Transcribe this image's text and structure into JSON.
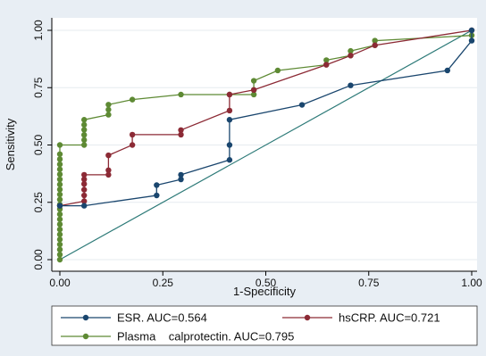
{
  "chart_data": {
    "type": "line",
    "xlabel": "1-Specificity",
    "ylabel": "Sensitivity",
    "xlim": [
      0,
      1
    ],
    "ylim": [
      0,
      1
    ],
    "x_ticks": [
      "0.00",
      "0.25",
      "0.50",
      "0.75",
      "1.00"
    ],
    "y_ticks": [
      "0.00",
      "0.25",
      "0.50",
      "0.75",
      "1.00"
    ],
    "grid": "horizontal",
    "legend_position": "bottom",
    "reference_line": {
      "x": [
        0,
        1
      ],
      "y": [
        0,
        1
      ],
      "color": "#2d7a78"
    },
    "series": [
      {
        "name": "ESR. AUC=0.564",
        "color": "#1a466e",
        "x": [
          0,
          0.059,
          0.235,
          0.235,
          0.294,
          0.294,
          0.412,
          0.412,
          0.412,
          0.588,
          0.706,
          0.941,
          1.0,
          1.0
        ],
        "y": [
          0.235,
          0.235,
          0.28,
          0.325,
          0.35,
          0.37,
          0.435,
          0.5,
          0.61,
          0.675,
          0.76,
          0.825,
          0.955,
          1.0
        ]
      },
      {
        "name": "hsCRP. AUC=0.721",
        "color": "#8c2a35",
        "x": [
          0,
          0.059,
          0.059,
          0.059,
          0.059,
          0.059,
          0.059,
          0.118,
          0.118,
          0.118,
          0.176,
          0.176,
          0.294,
          0.294,
          0.412,
          0.412,
          0.471,
          0.647,
          0.706,
          0.765,
          1.0
        ],
        "y": [
          0.235,
          0.255,
          0.28,
          0.305,
          0.33,
          0.35,
          0.37,
          0.37,
          0.39,
          0.455,
          0.5,
          0.545,
          0.545,
          0.565,
          0.65,
          0.72,
          0.74,
          0.85,
          0.89,
          0.935,
          1.0
        ]
      },
      {
        "name": "Plasma    calprotectin. AUC=0.795",
        "color": "#5e8a34",
        "x": [
          0,
          0,
          0,
          0,
          0,
          0,
          0,
          0,
          0,
          0,
          0,
          0,
          0,
          0,
          0,
          0,
          0,
          0,
          0,
          0,
          0,
          0,
          0,
          0.059,
          0.059,
          0.059,
          0.059,
          0.059,
          0.059,
          0.118,
          0.118,
          0.118,
          0.176,
          0.294,
          0.412,
          0.471,
          0.471,
          0.471,
          0.529,
          0.647,
          0.647,
          0.706,
          0.706,
          0.765,
          0.765,
          1.0
        ],
        "y": [
          0,
          0.022,
          0.044,
          0.066,
          0.088,
          0.11,
          0.132,
          0.154,
          0.176,
          0.198,
          0.22,
          0.24,
          0.262,
          0.284,
          0.306,
          0.328,
          0.35,
          0.372,
          0.394,
          0.416,
          0.438,
          0.46,
          0.5,
          0.5,
          0.522,
          0.544,
          0.566,
          0.588,
          0.61,
          0.632,
          0.654,
          0.676,
          0.698,
          0.72,
          0.72,
          0.72,
          0.74,
          0.78,
          0.825,
          0.85,
          0.87,
          0.89,
          0.91,
          0.935,
          0.955,
          0.978
        ]
      }
    ]
  }
}
